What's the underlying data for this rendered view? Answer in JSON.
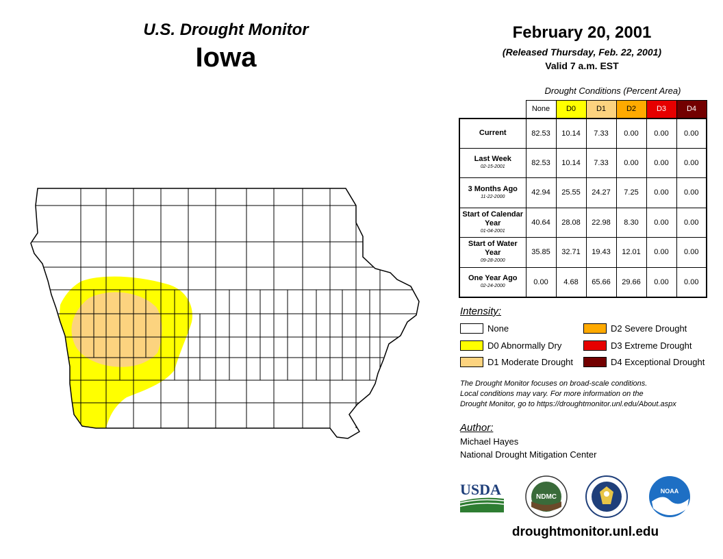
{
  "header": {
    "title": "U.S. Drought Monitor",
    "state": "Iowa",
    "date": "February 20, 2001",
    "released": "(Released Thursday, Feb. 22, 2001)",
    "valid": "Valid 7 a.m. EST"
  },
  "conditions": {
    "title": "Drought Conditions (Percent Area)",
    "columns": [
      "None",
      "D0",
      "D1",
      "D2",
      "D3",
      "D4"
    ],
    "column_colors": [
      "#ffffff",
      "#ffff00",
      "#fcd37f",
      "#ffaa00",
      "#e60000",
      "#730000"
    ],
    "rows": [
      {
        "label": "Current",
        "date": "",
        "values": [
          "82.53",
          "10.14",
          "7.33",
          "0.00",
          "0.00",
          "0.00"
        ]
      },
      {
        "label": "Last Week",
        "date": "02-15-2001",
        "values": [
          "82.53",
          "10.14",
          "7.33",
          "0.00",
          "0.00",
          "0.00"
        ]
      },
      {
        "label": "3 Months Ago",
        "date": "11-22-2000",
        "values": [
          "42.94",
          "25.55",
          "24.27",
          "7.25",
          "0.00",
          "0.00"
        ]
      },
      {
        "label": "Start of Calendar Year",
        "date": "01-04-2001",
        "values": [
          "40.64",
          "28.08",
          "22.98",
          "8.30",
          "0.00",
          "0.00"
        ]
      },
      {
        "label": "Start of Water Year",
        "date": "09-28-2000",
        "values": [
          "35.85",
          "32.71",
          "19.43",
          "12.01",
          "0.00",
          "0.00"
        ]
      },
      {
        "label": "One Year Ago",
        "date": "02-24-2000",
        "values": [
          "0.00",
          "4.68",
          "65.66",
          "29.66",
          "0.00",
          "0.00"
        ]
      }
    ]
  },
  "legend": {
    "title": "Intensity:",
    "items": [
      {
        "label": "None",
        "color": "#ffffff"
      },
      {
        "label": "D0 Abnormally Dry",
        "color": "#ffff00"
      },
      {
        "label": "D1 Moderate Drought",
        "color": "#fcd37f"
      },
      {
        "label": "D2 Severe Drought",
        "color": "#ffaa00"
      },
      {
        "label": "D3 Extreme Drought",
        "color": "#e60000"
      },
      {
        "label": "D4 Exceptional Drought",
        "color": "#730000"
      }
    ]
  },
  "disclaimer": {
    "line1": "The Drought Monitor focuses on broad-scale conditions.",
    "line2": "Local conditions may vary. For more information on the",
    "line3": "Drought Monitor, go to https://droughtmonitor.unl.edu/About.aspx"
  },
  "author": {
    "title": "Author:",
    "name": "Michael Hayes",
    "org": "National Drought Mitigation Center"
  },
  "logos": {
    "usda": "USDA",
    "ndmc": "NDMC",
    "noaa": "NOAA"
  },
  "site_url": "droughtmonitor.unl.edu"
}
